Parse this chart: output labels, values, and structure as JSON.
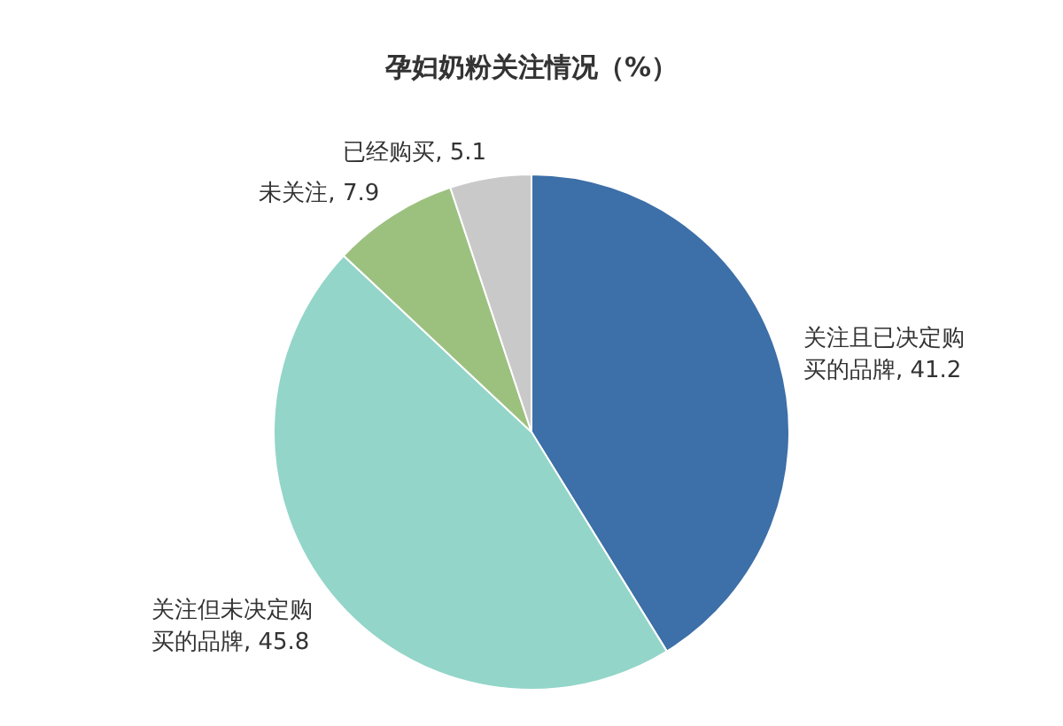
{
  "chart_data": {
    "type": "pie",
    "title": "孕妇奶粉关注情况（%）",
    "categories": [
      "关注且已决定购买的品牌",
      "关注但未决定购买的品牌",
      "未关注",
      "已经购买"
    ],
    "values": [
      41.2,
      45.8,
      7.9,
      5.1
    ],
    "colors": [
      "#3d6fa8",
      "#93d5c9",
      "#9cc17f",
      "#c9c9c9"
    ],
    "value_labels": [
      ", 41.2",
      ", 45.8",
      ", 7.9",
      ", 5.1"
    ],
    "legend": false
  }
}
